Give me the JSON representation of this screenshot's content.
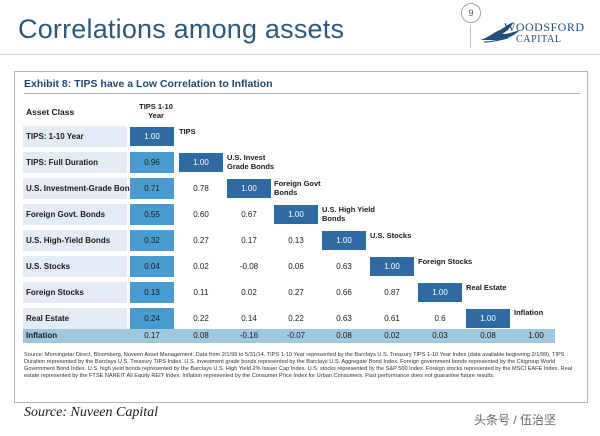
{
  "slide": {
    "title": "Correlations among assets",
    "page_number": "9",
    "logo_title": "WOODSFORD",
    "logo_sub": "CAPITAL"
  },
  "exhibit": {
    "title": "Exhibit 8: TIPS have a Low Correlation to Inflation",
    "asset_class_label": "Asset Class",
    "column_headers": [
      "TIPS 1-10 Year",
      "TIPS",
      "U.S. Invest Grade Bonds",
      "Foreign Govt Bonds",
      "U.S. High Yield Bonds",
      "U.S. Stocks",
      "Foreign Stocks",
      "Real Estate",
      "Inflation"
    ],
    "rows": [
      {
        "label": "TIPS: 1-10 Year",
        "values": [
          "1.00"
        ]
      },
      {
        "label": "TIPS: Full Duration",
        "values": [
          "0.96",
          "1.00"
        ]
      },
      {
        "label": "U.S. Investment-Grade Bonds",
        "values": [
          "0.71",
          "0.78",
          "1.00"
        ]
      },
      {
        "label": "Foreign Govt. Bonds",
        "values": [
          "0.55",
          "0.60",
          "0.67",
          "1.00"
        ]
      },
      {
        "label": "U.S. High-Yield Bonds",
        "values": [
          "0.32",
          "0.27",
          "0.17",
          "0.13",
          "1.00"
        ]
      },
      {
        "label": "U.S. Stocks",
        "values": [
          "0.04",
          "0.02",
          "-0.08",
          "0.06",
          "0.63",
          "1.00"
        ]
      },
      {
        "label": "Foreign Stocks",
        "values": [
          "0.13",
          "0.11",
          "0.02",
          "0.27",
          "0.66",
          "0.87",
          "1.00"
        ]
      },
      {
        "label": "Real Estate",
        "values": [
          "0.24",
          "0.22",
          "0.14",
          "0.22",
          "0.63",
          "0.61",
          "0.6",
          "1.00"
        ]
      },
      {
        "label": "Inflation",
        "values": [
          "0.17",
          "0.08",
          "-0.16",
          "-0.07",
          "0.08",
          "0.02",
          "0.03",
          "0.08",
          "1.00"
        ]
      }
    ],
    "source_note": "Source: Morningstar Direct, Bloomberg, Nuveen Asset Management. Data from 2/1/99 to 5/31/14. TIPS 1-10 Year represented by the Barclays U.S. Treasury TIPS 1-10 Year Index (data available beginning 2/1/99). TIPS Duration represented by the Barclays U.S. Treasury TIPS Index. U.S. investment grade bonds represented by the Barclays U.S. Aggregate Bond Index. Foreign government bonds represented by the Citigroup World Government Bond Index. U.S. high yield bonds represented by the Barclays U.S. High Yield 2% Issuer Cap Index. U.S. stocks represented by the S&P 500 Index. Foreign stocks represented by the MSCI EAFE Index. Real estate represented by the FTSE NAREIT All Equity REIT Index. Inflation represented by the Consumer Price Index for Urban Consumers. Past performance does not guarantee future results."
  },
  "footer": {
    "source": "Source: Nuveen Capital",
    "watermark": "头条号 / 伍治坚"
  }
}
